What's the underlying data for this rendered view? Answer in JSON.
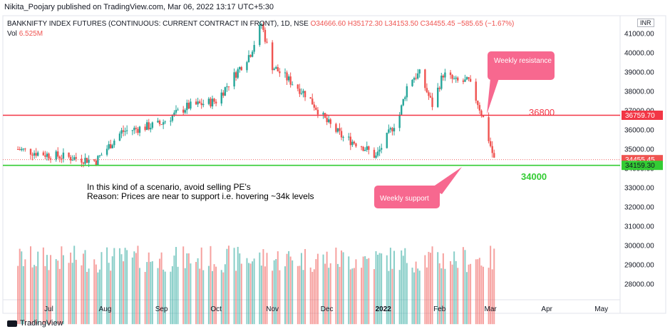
{
  "header": {
    "publisher": "Nikita_Poojary published on TradingView.com, Mar 06, 2022 13:17 UTC+5:30"
  },
  "legend": {
    "symbol": "BANKNIFTY INDEX FUTURES (CONTINUOUS: CURRENT CONTRACT IN FRONT), 1D, NSE",
    "ohlc": "O34666.60  H35172.30  L34153.50  C34455.45  −585.65 (−1.67%)",
    "vol_label": "Vol",
    "vol_value": "6.525M"
  },
  "currency": "INR",
  "colors": {
    "up": "#26a69a",
    "down": "#ef5350",
    "resistance": "#f23645",
    "support": "#33cc33",
    "callout": "#f7688f"
  },
  "chart_data": {
    "type": "candlestick",
    "y_axis_labels": [
      "41000.00",
      "40000.00",
      "39000.00",
      "38000.00",
      "37000.00",
      "36000.00",
      "35000.00",
      "34000.00",
      "33000.00",
      "32000.00",
      "31000.00",
      "30000.00",
      "29000.00",
      "28000.00"
    ],
    "x_axis_labels": [
      "Jul",
      "Aug",
      "Sep",
      "Oct",
      "Nov",
      "Dec",
      "2022",
      "Feb",
      "Mar",
      "Apr",
      "May"
    ],
    "ylim": [
      27000,
      41500
    ],
    "resistance_level": 36759.7,
    "support_level": 34159.3,
    "last_price": 34455.45,
    "price_badges": [
      "36759.70",
      "34455.45",
      "34159.30"
    ],
    "resistance_text": "36800",
    "support_text": "34000",
    "price_anchors": [
      {
        "date": "2021-06-14",
        "price": 35000
      },
      {
        "date": "2021-07-01",
        "price": 34700
      },
      {
        "date": "2021-07-27",
        "price": 34400
      },
      {
        "date": "2021-08-10",
        "price": 35900
      },
      {
        "date": "2021-08-31",
        "price": 36300
      },
      {
        "date": "2021-09-15",
        "price": 37200
      },
      {
        "date": "2021-10-01",
        "price": 37500
      },
      {
        "date": "2021-10-20",
        "price": 40000
      },
      {
        "date": "2021-10-26",
        "price": 41500
      },
      {
        "date": "2021-11-01",
        "price": 39300
      },
      {
        "date": "2021-11-20",
        "price": 37800
      },
      {
        "date": "2021-12-01",
        "price": 36400
      },
      {
        "date": "2021-12-10",
        "price": 35600
      },
      {
        "date": "2021-12-20",
        "price": 35200
      },
      {
        "date": "2021-12-28",
        "price": 34600
      },
      {
        "date": "2022-01-10",
        "price": 36800
      },
      {
        "date": "2022-01-15",
        "price": 38600
      },
      {
        "date": "2022-01-21",
        "price": 38900
      },
      {
        "date": "2022-01-28",
        "price": 37300
      },
      {
        "date": "2022-02-03",
        "price": 38900
      },
      {
        "date": "2022-02-10",
        "price": 38500
      },
      {
        "date": "2022-02-17",
        "price": 38500
      },
      {
        "date": "2022-02-22",
        "price": 37400
      },
      {
        "date": "2022-02-25",
        "price": 36600
      },
      {
        "date": "2022-03-03",
        "price": 34455
      }
    ],
    "volume_ylim": [
      27000,
      31000
    ]
  },
  "annotations": {
    "note_line1": "In this kind of a scenario, avoid selling PE's",
    "note_line2": "Reason: Prices are near to support i.e. hovering ~34k levels",
    "weekly_resistance": "Weekly resistance",
    "weekly_support": "Weekly support"
  },
  "footer": {
    "brand": "TradingView"
  }
}
